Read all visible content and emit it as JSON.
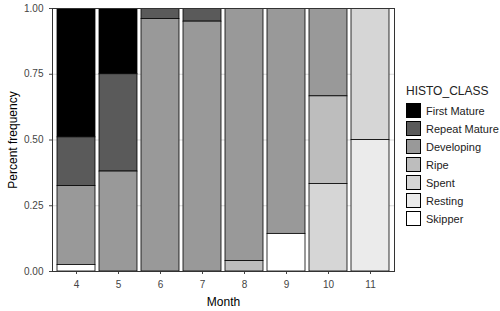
{
  "chart_data": {
    "type": "bar",
    "stacked": true,
    "x_label": "Month",
    "y_label": "Percent frequency",
    "legend_title": "HISTO_CLASS",
    "legend": "right",
    "grid": true,
    "categories": [
      "4",
      "5",
      "6",
      "7",
      "8",
      "9",
      "10",
      "11"
    ],
    "series": [
      {
        "name": "First Mature",
        "color": "#000000",
        "values": [
          0.49,
          0.25,
          0,
          0,
          0,
          0,
          0,
          0
        ]
      },
      {
        "name": "Repeat Mature",
        "color": "#5a5a5a",
        "values": [
          0.185,
          0.37,
          0.04,
          0.05,
          0,
          0,
          0,
          0
        ]
      },
      {
        "name": "Developing",
        "color": "#999999",
        "values": [
          0.3,
          0.38,
          0.96,
          0.95,
          0.96,
          0.857,
          0.333,
          0
        ]
      },
      {
        "name": "Ripe",
        "color": "#bdbdbd",
        "values": [
          0,
          0,
          0,
          0,
          0.04,
          0,
          0.333,
          0
        ]
      },
      {
        "name": "Spent",
        "color": "#d6d6d6",
        "values": [
          0,
          0,
          0,
          0,
          0,
          0,
          0.333,
          0.5
        ]
      },
      {
        "name": "Resting",
        "color": "#ebebeb",
        "values": [
          0,
          0,
          0,
          0,
          0,
          0,
          0,
          0.5
        ]
      },
      {
        "name": "Skipper",
        "color": "#ffffff",
        "values": [
          0.025,
          0,
          0,
          0,
          0,
          0.143,
          0,
          0
        ]
      }
    ],
    "ylim": [
      0,
      1
    ],
    "yticks": [
      {
        "value": 0,
        "label": "0.00"
      },
      {
        "value": 0.25,
        "label": "0.25"
      },
      {
        "value": 0.5,
        "label": "0.50"
      },
      {
        "value": 0.75,
        "label": "0.75"
      },
      {
        "value": 1,
        "label": "1.00"
      }
    ]
  }
}
